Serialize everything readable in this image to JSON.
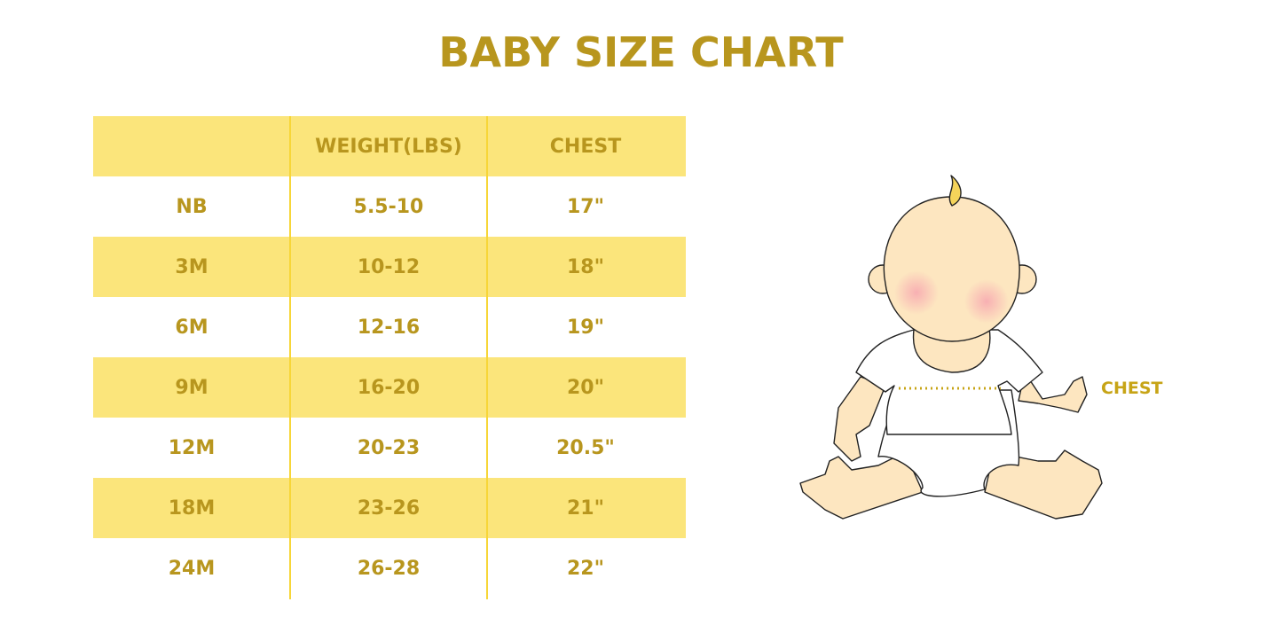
{
  "title": "BABY SIZE CHART",
  "table": {
    "headers": [
      "",
      "WEIGHT(LBS)",
      "CHEST"
    ],
    "rows": [
      [
        "NB",
        "5.5-10",
        "17\""
      ],
      [
        "3M",
        "10-12",
        "18\""
      ],
      [
        "6M",
        "12-16",
        "19\""
      ],
      [
        "9M",
        "16-20",
        "20\""
      ],
      [
        "12M",
        "20-23",
        "20.5\""
      ],
      [
        "18M",
        "23-26",
        "21\""
      ],
      [
        "24M",
        "26-28",
        "22\""
      ]
    ]
  },
  "illustration": {
    "chest_label": "CHEST"
  },
  "colors": {
    "text": "#b8961e",
    "row_highlight": "#fbe57b",
    "divider": "#f7d638",
    "skin": "#fde6c0"
  }
}
